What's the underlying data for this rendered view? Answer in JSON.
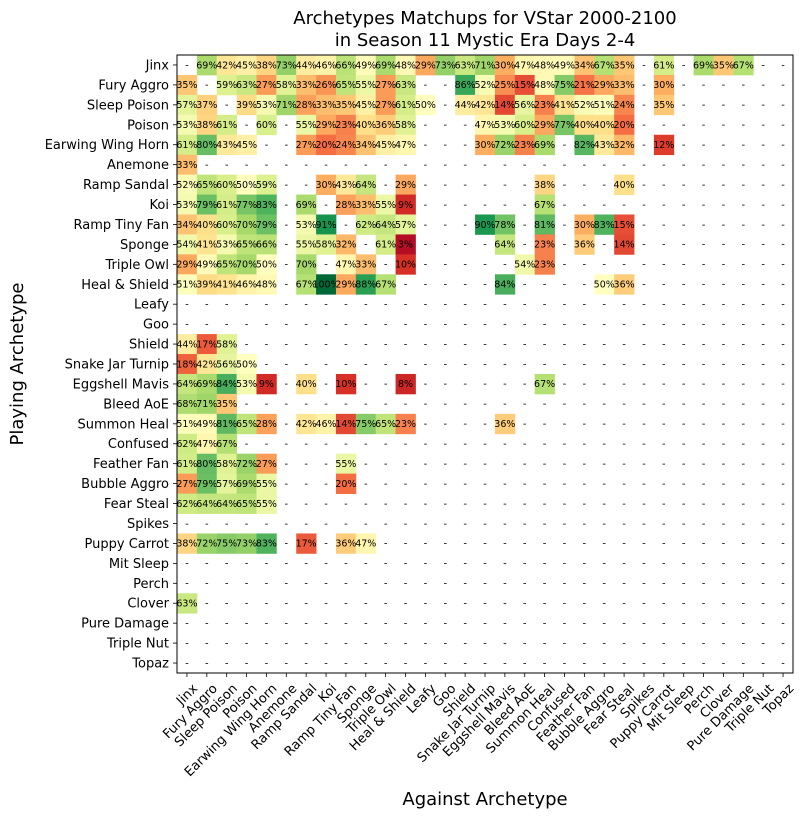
{
  "chart_data": {
    "type": "heatmap",
    "title": "Archetypes Matchups for VStar 2000-2100",
    "subtitle": "in Season 11 Mystic Era Days 2-4",
    "xlabel": "Against Archetype",
    "ylabel": "Playing Archetype",
    "value_format": "percent",
    "empty_label": "-",
    "color_scale": {
      "low": "#d73027",
      "mid": "#ffffbf",
      "high": "#006837",
      "domain": [
        0,
        100
      ]
    },
    "categories": [
      "Jinx",
      "Fury Aggro",
      "Sleep Poison",
      "Poison",
      "Earwing Wing Horn",
      "Anemone",
      "Ramp Sandal",
      "Koi",
      "Ramp Tiny Fan",
      "Sponge",
      "Triple Owl",
      "Heal & Shield",
      "Leafy",
      "Goo",
      "Shield",
      "Snake Jar Turnip",
      "Eggshell Mavis",
      "Bleed AoE",
      "Summon Heal",
      "Confused",
      "Feather Fan",
      "Bubble Aggro",
      "Fear Steal",
      "Spikes",
      "Puppy Carrot",
      "Mit Sleep",
      "Perch",
      "Clover",
      "Pure Damage",
      "Triple Nut",
      "Topaz"
    ],
    "matrix": [
      [
        null,
        69,
        42,
        45,
        38,
        73,
        44,
        46,
        66,
        49,
        69,
        48,
        29,
        73,
        63,
        71,
        30,
        47,
        48,
        49,
        34,
        67,
        35,
        null,
        61,
        null,
        69,
        35,
        67,
        null,
        null
      ],
      [
        35,
        null,
        59,
        63,
        27,
        58,
        33,
        26,
        65,
        55,
        27,
        63,
        null,
        null,
        86,
        52,
        25,
        15,
        48,
        75,
        21,
        29,
        33,
        null,
        30,
        null,
        null,
        null,
        null,
        null,
        null
      ],
      [
        57,
        37,
        null,
        39,
        53,
        71,
        28,
        33,
        35,
        45,
        27,
        61,
        50,
        null,
        44,
        42,
        14,
        56,
        23,
        41,
        52,
        51,
        24,
        null,
        35,
        null,
        null,
        null,
        null,
        null,
        null
      ],
      [
        53,
        38,
        61,
        null,
        60,
        null,
        55,
        29,
        23,
        40,
        36,
        58,
        null,
        null,
        null,
        47,
        53,
        60,
        29,
        77,
        40,
        40,
        20,
        null,
        null,
        null,
        null,
        null,
        null,
        null,
        null
      ],
      [
        61,
        80,
        43,
        45,
        null,
        null,
        27,
        20,
        24,
        34,
        45,
        47,
        null,
        null,
        null,
        30,
        72,
        23,
        69,
        null,
        82,
        43,
        32,
        null,
        12,
        null,
        null,
        null,
        null,
        null,
        null
      ],
      [
        33,
        null,
        null,
        null,
        null,
        null,
        null,
        null,
        null,
        null,
        null,
        null,
        null,
        null,
        null,
        null,
        null,
        null,
        null,
        null,
        null,
        null,
        null,
        null,
        null,
        null,
        null,
        null,
        null,
        null,
        null
      ],
      [
        52,
        65,
        60,
        50,
        59,
        null,
        null,
        30,
        43,
        64,
        null,
        29,
        null,
        null,
        null,
        null,
        null,
        null,
        38,
        null,
        null,
        null,
        40,
        null,
        null,
        null,
        null,
        null,
        null,
        null,
        null
      ],
      [
        53,
        79,
        61,
        77,
        83,
        null,
        69,
        null,
        28,
        33,
        55,
        9,
        null,
        null,
        null,
        null,
        null,
        null,
        67,
        null,
        null,
        null,
        null,
        null,
        null,
        null,
        null,
        null,
        null,
        null,
        null
      ],
      [
        34,
        40,
        60,
        70,
        79,
        null,
        53,
        91,
        null,
        62,
        64,
        57,
        null,
        null,
        null,
        90,
        78,
        null,
        81,
        null,
        30,
        83,
        15,
        null,
        null,
        null,
        null,
        null,
        null,
        null,
        null
      ],
      [
        54,
        41,
        53,
        65,
        66,
        null,
        55,
        58,
        32,
        null,
        61,
        3,
        null,
        null,
        null,
        null,
        64,
        null,
        23,
        null,
        36,
        null,
        14,
        null,
        null,
        null,
        null,
        null,
        null,
        null,
        null
      ],
      [
        29,
        49,
        65,
        70,
        50,
        null,
        70,
        null,
        47,
        33,
        null,
        10,
        null,
        null,
        null,
        null,
        null,
        54,
        23,
        null,
        null,
        null,
        null,
        null,
        null,
        null,
        null,
        null,
        null,
        null,
        null
      ],
      [
        51,
        39,
        41,
        46,
        48,
        null,
        67,
        100,
        29,
        88,
        67,
        null,
        null,
        null,
        null,
        null,
        84,
        null,
        null,
        null,
        null,
        50,
        36,
        null,
        null,
        null,
        null,
        null,
        null,
        null,
        null
      ],
      [
        null,
        null,
        null,
        null,
        null,
        null,
        null,
        null,
        null,
        null,
        null,
        null,
        null,
        null,
        null,
        null,
        null,
        null,
        null,
        null,
        null,
        null,
        null,
        null,
        null,
        null,
        null,
        null,
        null,
        null,
        null
      ],
      [
        null,
        null,
        null,
        null,
        null,
        null,
        null,
        null,
        null,
        null,
        null,
        null,
        null,
        null,
        null,
        null,
        null,
        null,
        null,
        null,
        null,
        null,
        null,
        null,
        null,
        null,
        null,
        null,
        null,
        null,
        null
      ],
      [
        44,
        17,
        58,
        null,
        null,
        null,
        null,
        null,
        null,
        null,
        null,
        null,
        null,
        null,
        null,
        null,
        null,
        null,
        null,
        null,
        null,
        null,
        null,
        null,
        null,
        null,
        null,
        null,
        null,
        null,
        null
      ],
      [
        18,
        42,
        56,
        50,
        null,
        null,
        null,
        null,
        null,
        null,
        null,
        null,
        null,
        null,
        null,
        null,
        null,
        null,
        null,
        null,
        null,
        null,
        null,
        null,
        null,
        null,
        null,
        null,
        null,
        null,
        null
      ],
      [
        64,
        69,
        84,
        53,
        9,
        null,
        40,
        null,
        10,
        null,
        null,
        8,
        null,
        null,
        null,
        null,
        null,
        null,
        67,
        null,
        null,
        null,
        null,
        null,
        null,
        null,
        null,
        null,
        null,
        null,
        null
      ],
      [
        68,
        71,
        35,
        null,
        null,
        null,
        null,
        null,
        null,
        null,
        null,
        null,
        null,
        null,
        null,
        null,
        null,
        null,
        null,
        null,
        null,
        null,
        null,
        null,
        null,
        null,
        null,
        null,
        null,
        null,
        null
      ],
      [
        51,
        49,
        81,
        65,
        28,
        null,
        42,
        46,
        14,
        75,
        65,
        23,
        null,
        null,
        null,
        null,
        36,
        null,
        null,
        null,
        null,
        null,
        null,
        null,
        null,
        null,
        null,
        null,
        null,
        null,
        null
      ],
      [
        62,
        47,
        67,
        null,
        null,
        null,
        null,
        null,
        null,
        null,
        null,
        null,
        null,
        null,
        null,
        null,
        null,
        null,
        null,
        null,
        null,
        null,
        null,
        null,
        null,
        null,
        null,
        null,
        null,
        null,
        null
      ],
      [
        61,
        80,
        58,
        72,
        27,
        null,
        null,
        null,
        55,
        null,
        null,
        null,
        null,
        null,
        null,
        null,
        null,
        null,
        null,
        null,
        null,
        null,
        null,
        null,
        null,
        null,
        null,
        null,
        null,
        null,
        null
      ],
      [
        27,
        79,
        57,
        69,
        55,
        null,
        null,
        null,
        20,
        null,
        null,
        null,
        null,
        null,
        null,
        null,
        null,
        null,
        null,
        null,
        null,
        null,
        null,
        null,
        null,
        null,
        null,
        null,
        null,
        null,
        null
      ],
      [
        62,
        64,
        64,
        65,
        55,
        null,
        null,
        null,
        null,
        null,
        null,
        null,
        null,
        null,
        null,
        null,
        null,
        null,
        null,
        null,
        null,
        null,
        null,
        null,
        null,
        null,
        null,
        null,
        null,
        null,
        null
      ],
      [
        null,
        null,
        null,
        null,
        null,
        null,
        null,
        null,
        null,
        null,
        null,
        null,
        null,
        null,
        null,
        null,
        null,
        null,
        null,
        null,
        null,
        null,
        null,
        null,
        null,
        null,
        null,
        null,
        null,
        null,
        null
      ],
      [
        38,
        72,
        75,
        73,
        83,
        null,
        17,
        null,
        36,
        47,
        null,
        null,
        null,
        null,
        null,
        null,
        null,
        null,
        null,
        null,
        null,
        null,
        null,
        null,
        null,
        null,
        null,
        null,
        null,
        null,
        null
      ],
      [
        null,
        null,
        null,
        null,
        null,
        null,
        null,
        null,
        null,
        null,
        null,
        null,
        null,
        null,
        null,
        null,
        null,
        null,
        null,
        null,
        null,
        null,
        null,
        null,
        null,
        null,
        null,
        null,
        null,
        null,
        null
      ],
      [
        null,
        null,
        null,
        null,
        null,
        null,
        null,
        null,
        null,
        null,
        null,
        null,
        null,
        null,
        null,
        null,
        null,
        null,
        null,
        null,
        null,
        null,
        null,
        null,
        null,
        null,
        null,
        null,
        null,
        null,
        null
      ],
      [
        63,
        null,
        null,
        null,
        null,
        null,
        null,
        null,
        null,
        null,
        null,
        null,
        null,
        null,
        null,
        null,
        null,
        null,
        null,
        null,
        null,
        null,
        null,
        null,
        null,
        null,
        null,
        null,
        null,
        null,
        null
      ],
      [
        null,
        null,
        null,
        null,
        null,
        null,
        null,
        null,
        null,
        null,
        null,
        null,
        null,
        null,
        null,
        null,
        null,
        null,
        null,
        null,
        null,
        null,
        null,
        null,
        null,
        null,
        null,
        null,
        null,
        null,
        null
      ],
      [
        null,
        null,
        null,
        null,
        null,
        null,
        null,
        null,
        null,
        null,
        null,
        null,
        null,
        null,
        null,
        null,
        null,
        null,
        null,
        null,
        null,
        null,
        null,
        null,
        null,
        null,
        null,
        null,
        null,
        null,
        null
      ],
      [
        null,
        null,
        null,
        null,
        null,
        null,
        null,
        null,
        null,
        null,
        null,
        null,
        null,
        null,
        null,
        null,
        null,
        null,
        null,
        null,
        null,
        null,
        null,
        null,
        null,
        null,
        null,
        null,
        null,
        null,
        null
      ]
    ]
  }
}
